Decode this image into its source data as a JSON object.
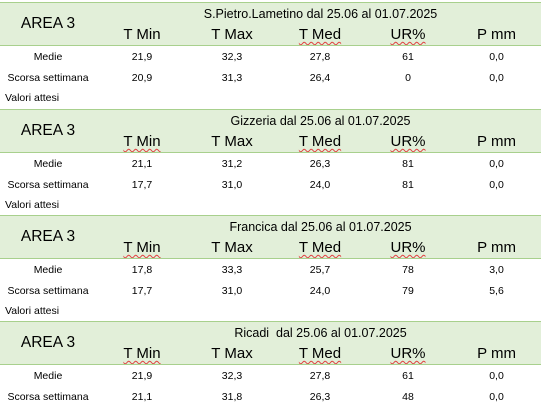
{
  "columns": [
    "T Min",
    "T Max",
    "T Med",
    "UR%",
    "P mm"
  ],
  "blocks": [
    {
      "area": "AREA 3",
      "station": "S.Pietro.Lametino dal 25.06 al 01.07.2025",
      "rows": [
        {
          "label": "Medie",
          "values": [
            "21,9",
            "32,3",
            "27,8",
            "61",
            "0,0"
          ]
        },
        {
          "label": "Scorsa settimana",
          "values": [
            "20,9",
            "31,3",
            "26,4",
            "0",
            "0,0"
          ]
        }
      ],
      "note": "Valori attesi"
    },
    {
      "area": "AREA 3",
      "station": "Gizzeria dal 25.06 al 01.07.2025",
      "rows": [
        {
          "label": "Medie",
          "values": [
            "21,1",
            "31,2",
            "26,3",
            "81",
            "0,0"
          ]
        },
        {
          "label": "Scorsa settimana",
          "values": [
            "17,7",
            "31,0",
            "24,0",
            "81",
            "0,0"
          ]
        }
      ],
      "note": "Valori attesi"
    },
    {
      "area": "AREA 3",
      "station": "Francica dal 25.06 al 01.07.2025",
      "rows": [
        {
          "label": "Medie",
          "values": [
            "17,8",
            "33,3",
            "25,7",
            "78",
            "3,0"
          ]
        },
        {
          "label": "Scorsa settimana",
          "values": [
            "17,7",
            "31,0",
            "24,0",
            "79",
            "5,6"
          ]
        }
      ],
      "note": "Valori attesi"
    },
    {
      "area": "AREA 3",
      "station": "Ricadi  dal 25.06 al 01.07.2025",
      "rows": [
        {
          "label": "Medie",
          "values": [
            "21,9",
            "32,3",
            "27,8",
            "61",
            "0,0"
          ]
        },
        {
          "label": "Scorsa settimana",
          "values": [
            "21,1",
            "31,8",
            "26,3",
            "48",
            "0,0"
          ]
        }
      ]
    }
  ]
}
